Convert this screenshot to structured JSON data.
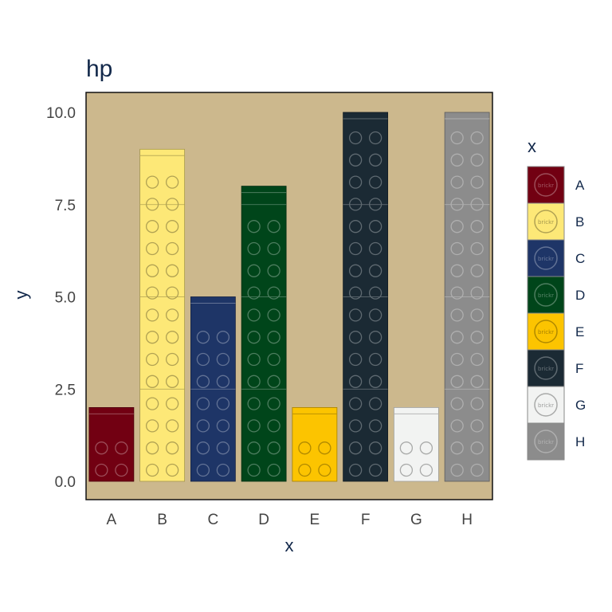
{
  "chart_data": {
    "type": "bar",
    "title": "hp",
    "xlabel": "x",
    "ylabel": "y",
    "categories": [
      "A",
      "B",
      "C",
      "D",
      "E",
      "F",
      "G",
      "H"
    ],
    "values": [
      2,
      9,
      5,
      8,
      2,
      10,
      2,
      10
    ],
    "ylim": [
      0,
      10.5
    ],
    "yticks": [
      "0.0",
      "2.5",
      "5.0",
      "7.5",
      "10.0"
    ],
    "grid": false,
    "legend": {
      "title": "x",
      "placement": "right",
      "entries": [
        "A",
        "B",
        "C",
        "D",
        "E",
        "F",
        "G",
        "H"
      ],
      "stamp_text": "brickr"
    },
    "panel_background": "#ccb88d",
    "colors": [
      "#720012",
      "#fde877",
      "#1e3567",
      "#00451a",
      "#fcc400",
      "#1b2a34",
      "#f2f3f2",
      "#8c8c8c"
    ]
  }
}
